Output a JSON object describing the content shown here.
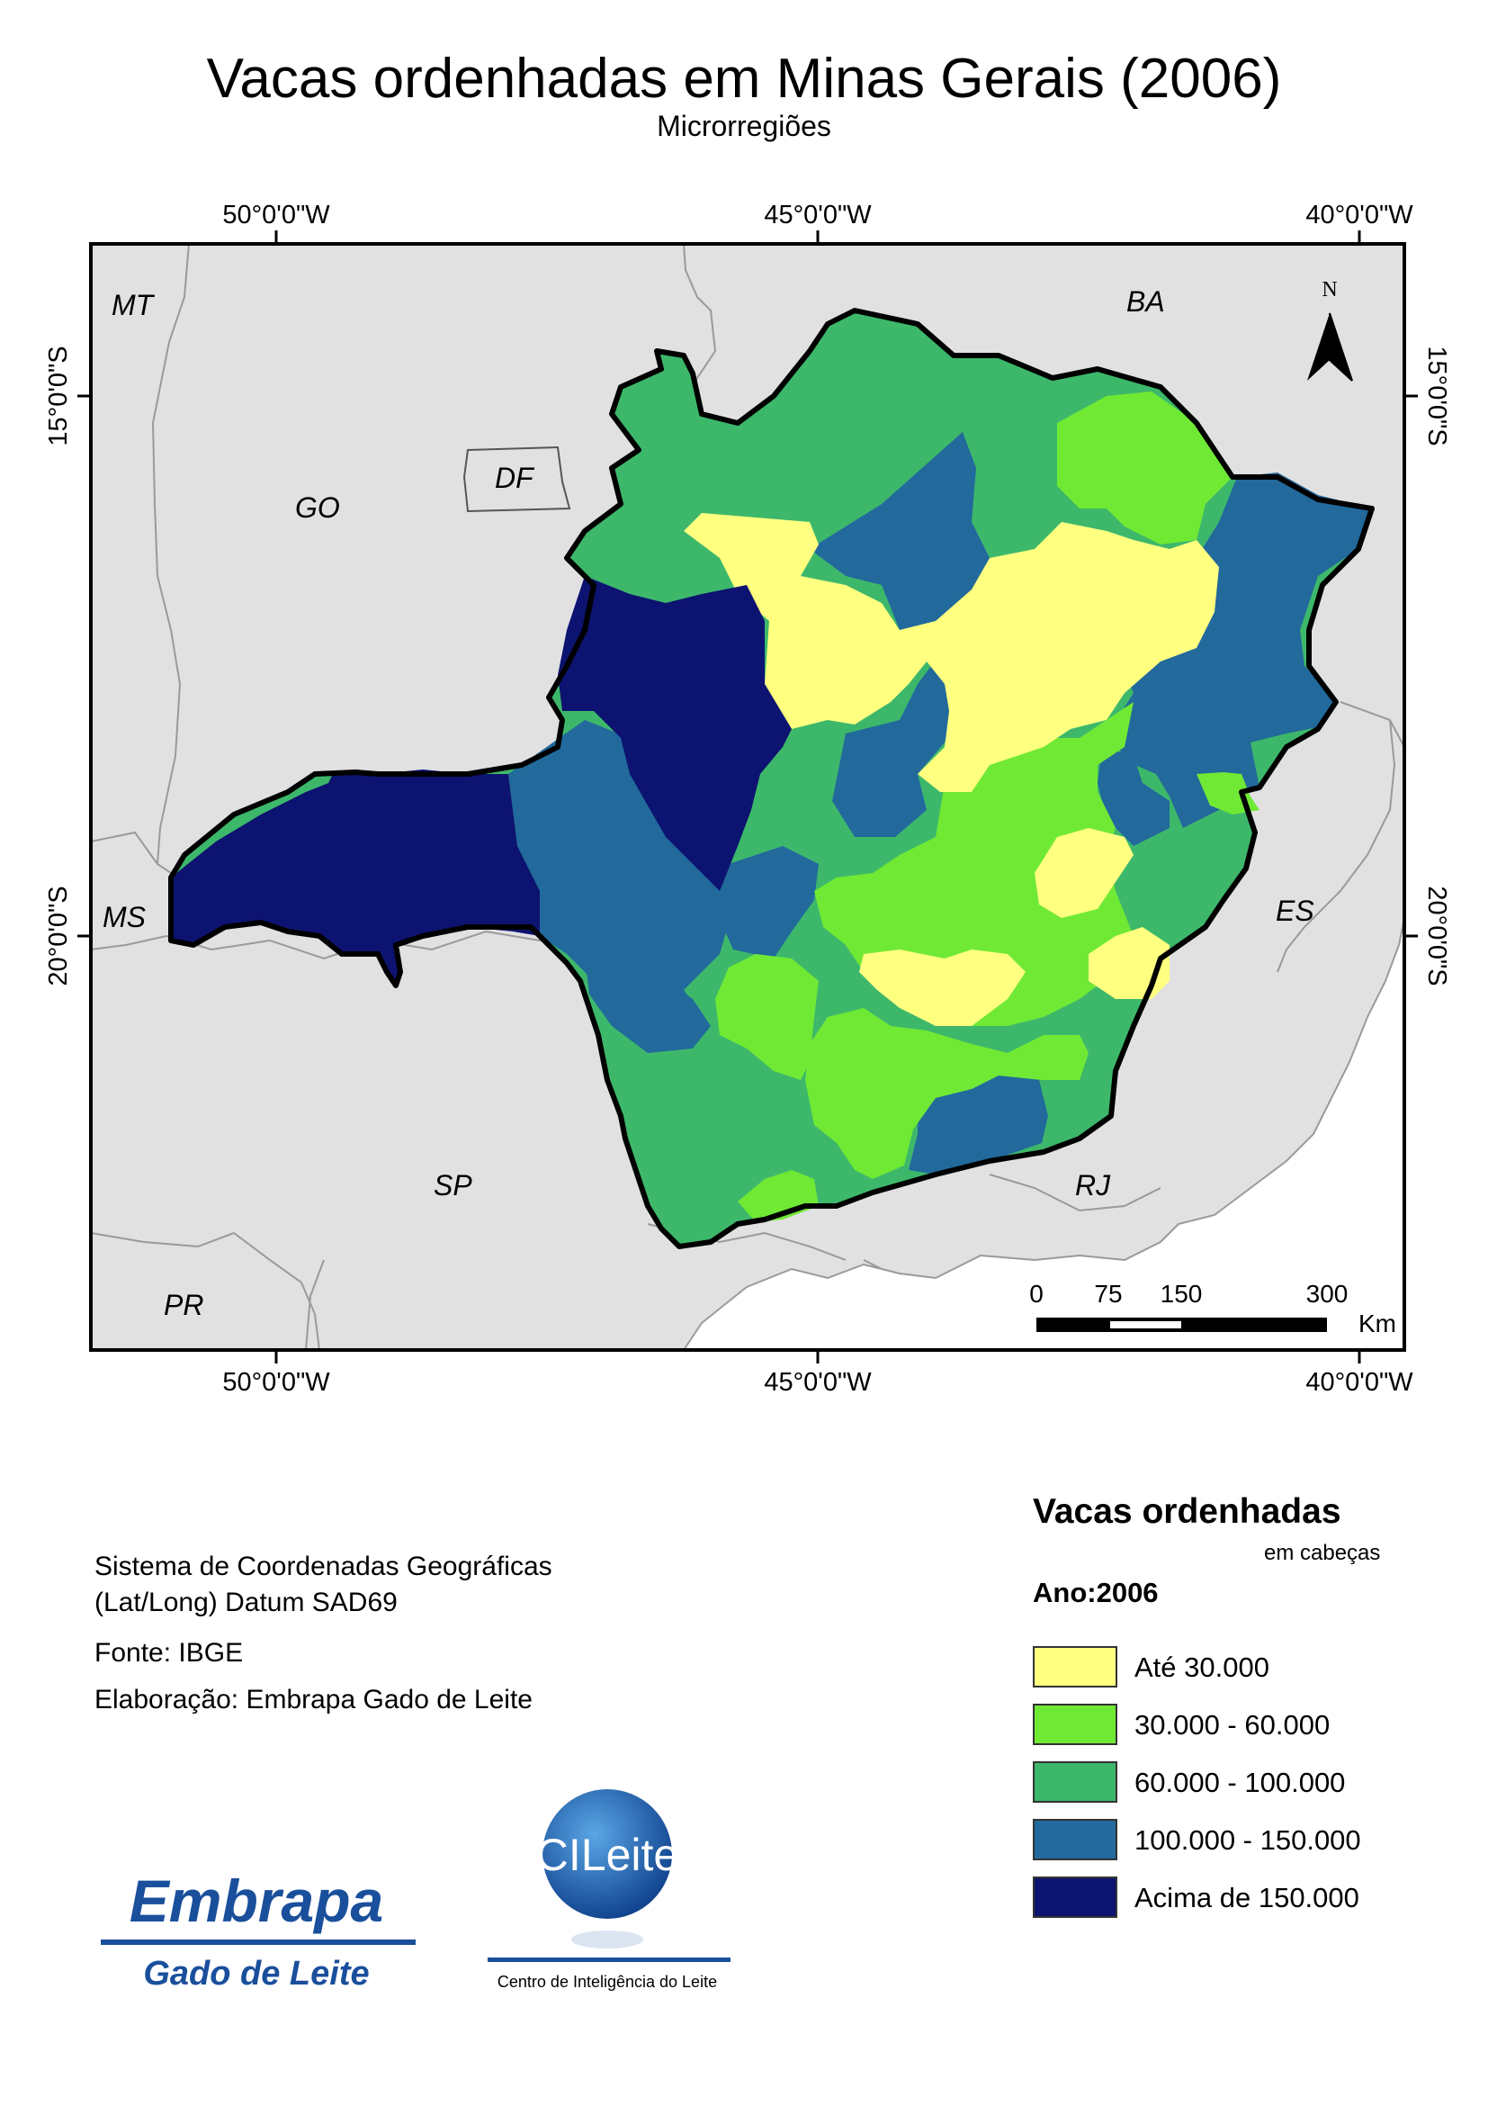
{
  "title": "Vacas ordenhadas em Minas Gerais (2006)",
  "subtitle": "Microrregiões",
  "graticule": {
    "longitudes": [
      {
        "label": "50°0'0\"W",
        "value": -50
      },
      {
        "label": "45°0'0\"W",
        "value": -45
      },
      {
        "label": "40°0'0\"W",
        "value": -40
      }
    ],
    "latitudes": [
      {
        "label": "15°0'0\"S",
        "value": -15
      },
      {
        "label": "20°0'0\"S",
        "value": -20
      }
    ]
  },
  "states": {
    "mt": "MT",
    "go": "GO",
    "df": "DF",
    "ba": "BA",
    "ms": "MS",
    "es": "ES",
    "sp": "SP",
    "rj": "RJ",
    "pr": "PR"
  },
  "north_arrow": "N",
  "scale_bar": {
    "ticks": [
      "0",
      "75",
      "150",
      "300"
    ],
    "unit": "Km"
  },
  "info": {
    "coords_line1": "Sistema de Coordenadas Geográficas",
    "coords_line2": "(Lat/Long) Datum SAD69",
    "source": "Fonte: IBGE",
    "author": "Elaboração: Embrapa Gado de Leite"
  },
  "legend": {
    "title": "Vacas ordenhadas",
    "unit": "em cabeças",
    "year": "Ano:2006",
    "classes": [
      {
        "label": "Até 30.000",
        "color": "#ffff80"
      },
      {
        "label": "30.000 - 60.000",
        "color": "#70e935"
      },
      {
        "label": "60.000 - 100.000",
        "color": "#3db86b"
      },
      {
        "label": "100.000 - 150.000",
        "color": "#22699c"
      },
      {
        "label": "Acima de 150.000",
        "color": "#0d1370"
      }
    ]
  },
  "logos": {
    "embrapa_top": "Embrapa",
    "embrapa_bottom": "Gado de Leite",
    "cileite": "CILeite",
    "cileite_caption": "Centro de Inteligência do Leite"
  }
}
